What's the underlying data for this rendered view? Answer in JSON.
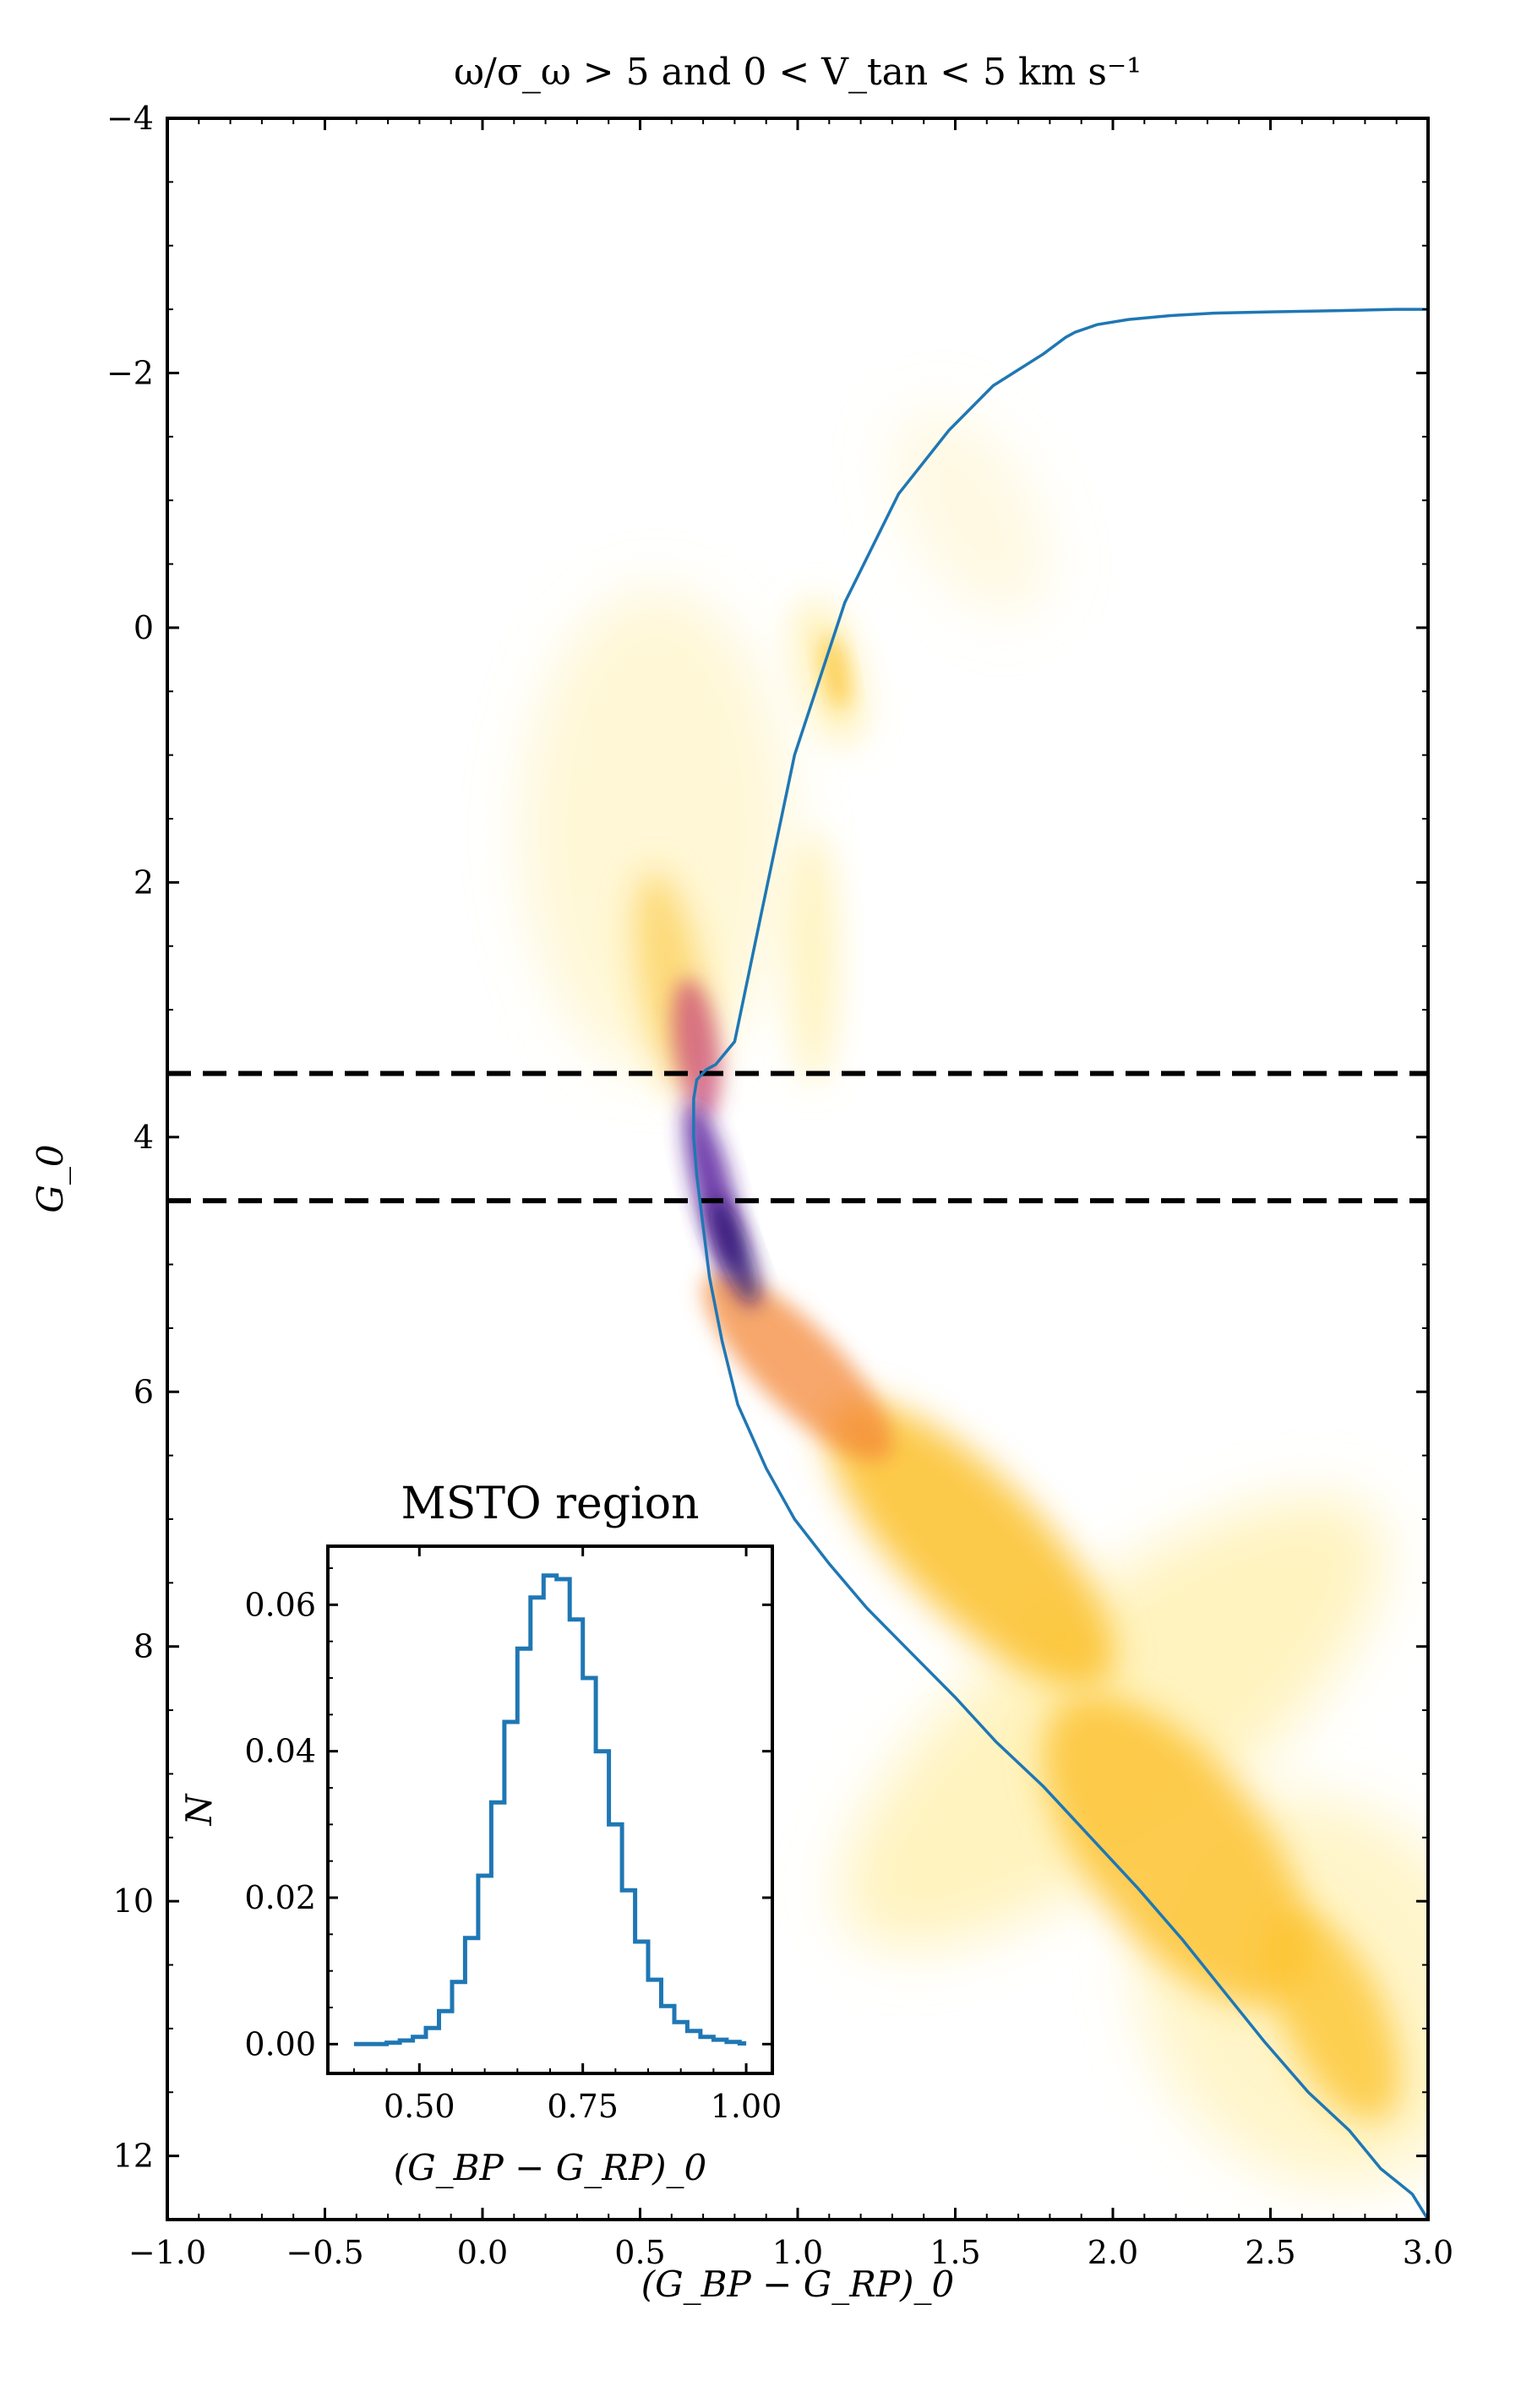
{
  "chart_data": [
    {
      "type": "scatter",
      "title": "ω/σ_ω > 5 and 0 < V_tan < 5 km s⁻¹",
      "xlabel": "(G_BP − G_RP)_0",
      "ylabel": "G_0",
      "xlim": [
        -1.0,
        3.0
      ],
      "ylim": [
        12.5,
        -4.0
      ],
      "x_ticks": [
        -1.0,
        -0.5,
        0.0,
        0.5,
        1.0,
        1.5,
        2.0,
        2.5,
        3.0
      ],
      "x_tick_labels": [
        "−1.0",
        "−0.5",
        "0.0",
        "0.5",
        "1.0",
        "1.5",
        "2.0",
        "2.5",
        "3.0"
      ],
      "y_ticks": [
        -4,
        -2,
        0,
        2,
        4,
        6,
        8,
        10,
        12
      ],
      "y_tick_labels": [
        "−4",
        "−2",
        "0",
        "2",
        "4",
        "6",
        "8",
        "10",
        "12"
      ],
      "density_colormap": [
        "#ffe98a",
        "#fcc12a",
        "#f48a3b",
        "#c8417b",
        "#5a1c9e",
        "#2a0a70"
      ],
      "dashed_lines_y": [
        3.5,
        4.5
      ],
      "dashed_color": "#000000",
      "isochrone_color": "#1f77b4",
      "isochrone": {
        "x": [
          3.0,
          2.95,
          2.85,
          2.75,
          2.62,
          2.48,
          2.35,
          2.22,
          2.08,
          1.93,
          1.78,
          1.63,
          1.5,
          1.36,
          1.22,
          1.1,
          0.99,
          0.9,
          0.81,
          0.76,
          0.72,
          0.7,
          0.68,
          0.67,
          0.67,
          0.68,
          0.71,
          0.74,
          0.8,
          0.88,
          0.99,
          1.15,
          1.32,
          1.48,
          1.62,
          1.78,
          1.85,
          1.88,
          1.95,
          2.05,
          2.18,
          2.32,
          2.5,
          2.72,
          2.9,
          3.0
        ],
        "y": [
          12.5,
          12.3,
          12.1,
          11.8,
          11.5,
          11.1,
          10.7,
          10.3,
          9.9,
          9.5,
          9.1,
          8.75,
          8.4,
          8.05,
          7.7,
          7.35,
          7.0,
          6.6,
          6.1,
          5.6,
          5.1,
          4.7,
          4.3,
          4.0,
          3.7,
          3.55,
          3.47,
          3.43,
          3.25,
          2.3,
          1.0,
          -0.2,
          -1.05,
          -1.55,
          -1.9,
          -2.15,
          -2.28,
          -2.32,
          -2.38,
          -2.42,
          -2.45,
          -2.47,
          -2.48,
          -2.49,
          -2.5,
          -2.5
        ]
      }
    },
    {
      "type": "line",
      "title": "MSTO region",
      "xlabel": "(G_BP − G_RP)_0",
      "ylabel": "N",
      "xlim": [
        0.36,
        1.04
      ],
      "ylim": [
        -0.004,
        0.068
      ],
      "x_ticks": [
        0.5,
        0.75,
        1.0
      ],
      "x_tick_labels": [
        "0.50",
        "0.75",
        "1.00"
      ],
      "y_ticks": [
        0.0,
        0.02,
        0.04,
        0.06
      ],
      "y_tick_labels": [
        "0.00",
        "0.02",
        "0.04",
        "0.06"
      ],
      "color": "#1f77b4",
      "x": [
        0.4,
        0.42,
        0.44,
        0.46,
        0.48,
        0.5,
        0.52,
        0.54,
        0.56,
        0.58,
        0.6,
        0.62,
        0.64,
        0.66,
        0.68,
        0.7,
        0.72,
        0.74,
        0.76,
        0.78,
        0.8,
        0.82,
        0.84,
        0.86,
        0.88,
        0.9,
        0.92,
        0.94,
        0.96,
        0.98,
        1.0
      ],
      "values": [
        0.0,
        0.0,
        0.0,
        0.0002,
        0.0005,
        0.001,
        0.0022,
        0.0045,
        0.0085,
        0.0145,
        0.023,
        0.033,
        0.044,
        0.054,
        0.061,
        0.064,
        0.0635,
        0.058,
        0.05,
        0.04,
        0.03,
        0.021,
        0.014,
        0.0088,
        0.0052,
        0.003,
        0.0018,
        0.001,
        0.0006,
        0.0003,
        0.0001
      ]
    }
  ]
}
